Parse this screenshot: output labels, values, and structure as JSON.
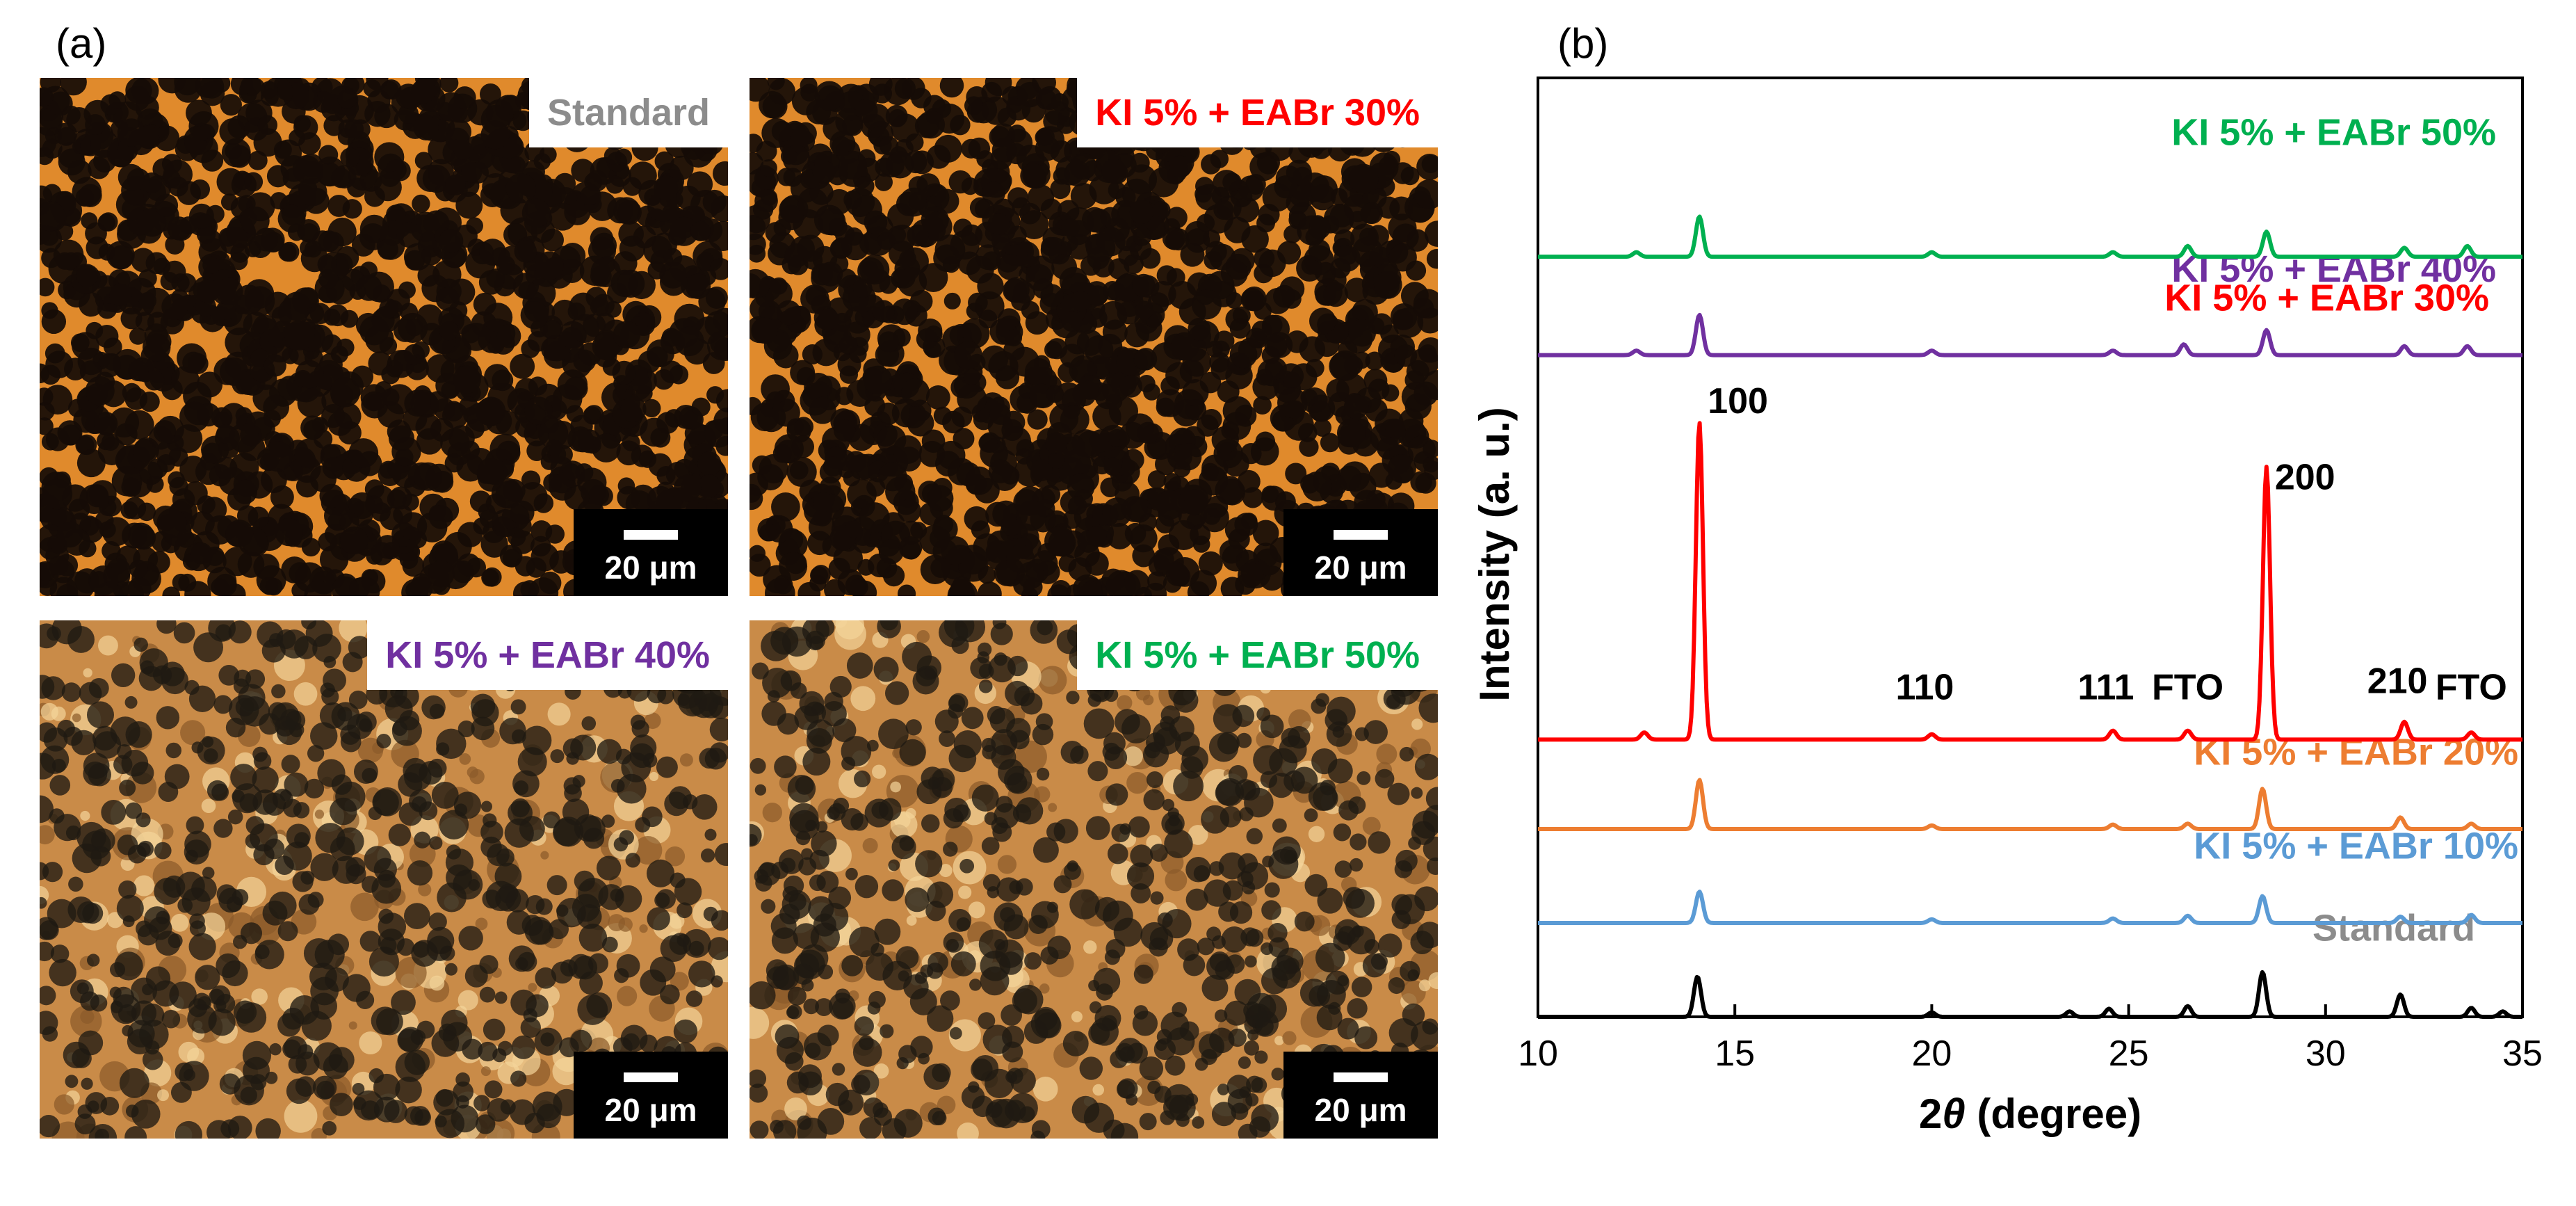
{
  "panel_a": {
    "label": "(a)",
    "images": [
      {
        "sample": "Standard",
        "color": "#8c8c8c",
        "scale_bar": "20 μm",
        "tone": "dark"
      },
      {
        "sample": "KI 5% + EABr 30%",
        "color": "#ff0000",
        "scale_bar": "20 μm",
        "tone": "dark"
      },
      {
        "sample": "KI 5% + EABr 40%",
        "color": "#7030a0",
        "scale_bar": "20 μm",
        "tone": "bright"
      },
      {
        "sample": "KI 5% + EABr 50%",
        "color": "#00b050",
        "scale_bar": "20 μm",
        "tone": "bright"
      }
    ]
  },
  "panel_b": {
    "label": "(b)"
  },
  "chart_data": {
    "type": "line",
    "title": "",
    "xlabel_prefix": "2",
    "xlabel_symbol": "θ",
    "xlabel_suffix": " (degree)",
    "ylabel": "Intensity (a. u.)",
    "xlim": [
      10,
      35
    ],
    "ylim": [
      0,
      10.5
    ],
    "x_ticks": [
      10,
      15,
      20,
      25,
      30,
      35
    ],
    "x_tick_labels": [
      "10",
      "15",
      "20",
      "25",
      "30",
      "35"
    ],
    "y_ticks_labeled": false,
    "series": [
      {
        "name": "Standard",
        "color": "#000000",
        "offset": 0.0,
        "label_color": "#8c8c8c",
        "peaks": [
          [
            14.05,
            0.45
          ],
          [
            20.0,
            0.05
          ],
          [
            23.5,
            0.06
          ],
          [
            24.5,
            0.09
          ],
          [
            26.5,
            0.12
          ],
          [
            28.4,
            0.5
          ],
          [
            31.9,
            0.25
          ],
          [
            33.7,
            0.1
          ],
          [
            34.5,
            0.06
          ]
        ]
      },
      {
        "name": "KI 5% + EABr 10%",
        "color": "#5b9bd5",
        "offset": 1.05,
        "label_color": "#5b9bd5",
        "peaks": [
          [
            14.1,
            0.35
          ],
          [
            20.0,
            0.04
          ],
          [
            24.6,
            0.05
          ],
          [
            26.5,
            0.08
          ],
          [
            28.4,
            0.3
          ],
          [
            31.9,
            0.07
          ],
          [
            33.7,
            0.09
          ]
        ]
      },
      {
        "name": "KI 5% + EABr 20%",
        "color": "#ed7d31",
        "offset": 2.1,
        "label_color": "#ed7d31",
        "peaks": [
          [
            14.1,
            0.55
          ],
          [
            20.0,
            0.04
          ],
          [
            24.6,
            0.05
          ],
          [
            26.5,
            0.06
          ],
          [
            28.4,
            0.45
          ],
          [
            31.9,
            0.13
          ],
          [
            33.7,
            0.06
          ]
        ]
      },
      {
        "name": "KI 5% + EABr 30%",
        "color": "#ff0000",
        "offset": 3.1,
        "label_color": "#ff0000",
        "peaks": [
          [
            12.7,
            0.08
          ],
          [
            14.1,
            3.55
          ],
          [
            20.0,
            0.06
          ],
          [
            24.6,
            0.1
          ],
          [
            26.5,
            0.1
          ],
          [
            28.5,
            3.05
          ],
          [
            32.0,
            0.2
          ],
          [
            33.7,
            0.08
          ]
        ]
      },
      {
        "name": "KI 5% + EABr 40%",
        "color": "#7030a0",
        "offset": 7.4,
        "label_color": "#7030a0",
        "peaks": [
          [
            12.5,
            0.05
          ],
          [
            14.1,
            0.45
          ],
          [
            20.0,
            0.05
          ],
          [
            24.6,
            0.05
          ],
          [
            26.4,
            0.12
          ],
          [
            28.5,
            0.28
          ],
          [
            32.0,
            0.1
          ],
          [
            33.6,
            0.1
          ]
        ]
      },
      {
        "name": "KI 5% + EABr 50%",
        "color": "#00b050",
        "offset": 8.5,
        "label_color": "#00b050",
        "peaks": [
          [
            12.5,
            0.05
          ],
          [
            14.1,
            0.45
          ],
          [
            20.0,
            0.05
          ],
          [
            24.6,
            0.05
          ],
          [
            26.5,
            0.12
          ],
          [
            28.5,
            0.28
          ],
          [
            32.0,
            0.1
          ],
          [
            33.6,
            0.12
          ]
        ]
      }
    ],
    "peak_annotations": [
      {
        "text": "100",
        "x": 14.1
      },
      {
        "text": "200",
        "x": 28.5
      },
      {
        "text": "110",
        "x": 20.0
      },
      {
        "text": "111",
        "x": 24.6
      },
      {
        "text": "FTO",
        "x": 26.5
      },
      {
        "text": "210",
        "x": 32.0
      },
      {
        "text": "FTO",
        "x": 33.7
      }
    ]
  }
}
